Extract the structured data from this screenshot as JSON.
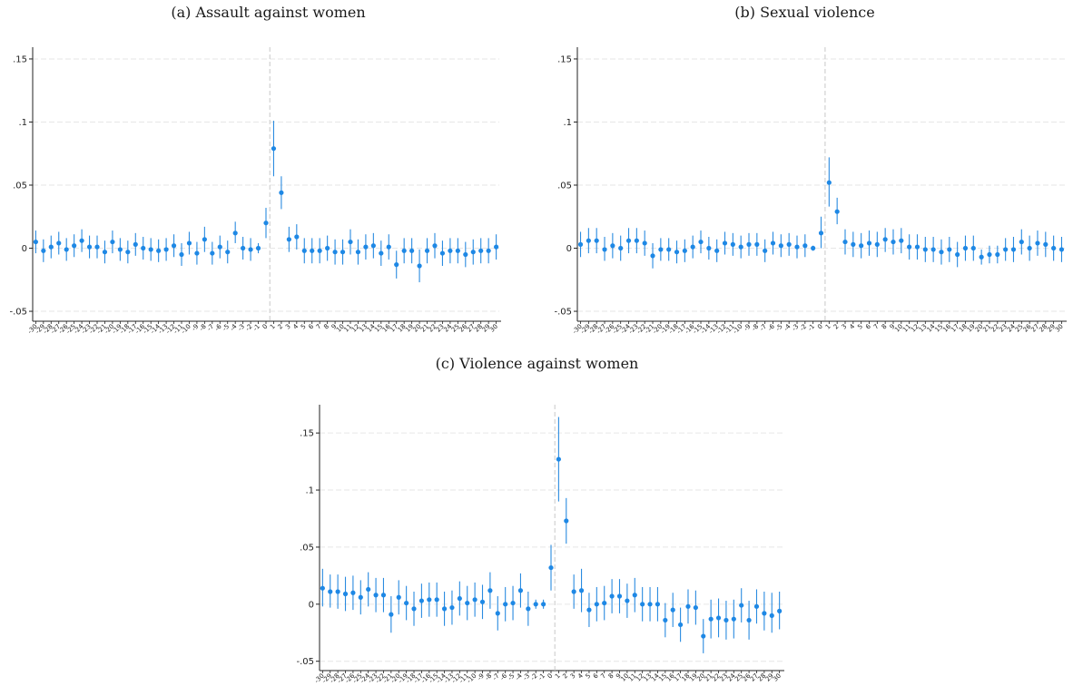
{
  "chart_data": [
    {
      "type": "scatter",
      "panel_label": "(a) Assault against women",
      "y_ticks": [
        -0.05,
        0,
        0.05,
        0.1,
        0.15
      ],
      "y_tick_labels": [
        "-.05",
        "0",
        ".05",
        ".1",
        ".15"
      ],
      "ylim": [
        -0.055,
        0.155
      ],
      "grid": true,
      "event_line_at": 0.5,
      "x": [
        -30,
        -29,
        -28,
        -27,
        -26,
        -25,
        -24,
        -23,
        -22,
        -21,
        -20,
        -19,
        -18,
        -17,
        -16,
        -15,
        -14,
        -13,
        -12,
        -11,
        -10,
        -9,
        -8,
        -7,
        -6,
        -5,
        -4,
        -3,
        -2,
        -1,
        0,
        1,
        2,
        3,
        4,
        5,
        6,
        7,
        8,
        9,
        10,
        11,
        12,
        13,
        14,
        15,
        16,
        17,
        18,
        19,
        20,
        21,
        22,
        23,
        24,
        25,
        26,
        27,
        28,
        29,
        30
      ],
      "series": [
        {
          "estimate": [
            0.005,
            -0.002,
            0.001,
            0.004,
            -0.001,
            0.002,
            0.006,
            0.001,
            0.001,
            -0.003,
            0.005,
            -0.001,
            -0.003,
            0.003,
            0.0,
            -0.001,
            -0.002,
            -0.001,
            0.002,
            -0.005,
            0.004,
            -0.004,
            0.007,
            -0.004,
            0.001,
            -0.003,
            0.012,
            0.0,
            -0.001,
            0.0,
            0.02,
            0.079,
            0.044,
            0.007,
            0.009,
            -0.002,
            -0.002,
            -0.002,
            0.0,
            -0.003,
            -0.003,
            0.005,
            -0.003,
            0.001,
            0.002,
            -0.004,
            0.001,
            -0.013,
            -0.002,
            -0.002,
            -0.014,
            -0.002,
            0.002,
            -0.004,
            -0.002,
            -0.002,
            -0.005,
            -0.003,
            -0.002,
            -0.002,
            0.001
          ],
          "ci_low": [
            -0.004,
            -0.011,
            -0.008,
            -0.005,
            -0.01,
            -0.007,
            -0.003,
            -0.008,
            -0.008,
            -0.012,
            -0.004,
            -0.01,
            -0.012,
            -0.006,
            -0.009,
            -0.01,
            -0.011,
            -0.01,
            -0.007,
            -0.014,
            -0.005,
            -0.013,
            -0.003,
            -0.013,
            -0.008,
            -0.012,
            0.004,
            -0.009,
            -0.01,
            -0.004,
            0.008,
            0.057,
            0.031,
            -0.003,
            -0.001,
            -0.012,
            -0.012,
            -0.012,
            -0.01,
            -0.013,
            -0.013,
            -0.005,
            -0.013,
            -0.009,
            -0.008,
            -0.014,
            -0.009,
            -0.024,
            -0.012,
            -0.012,
            -0.027,
            -0.012,
            -0.008,
            -0.014,
            -0.012,
            -0.012,
            -0.015,
            -0.013,
            -0.012,
            -0.012,
            -0.009
          ],
          "ci_high": [
            0.014,
            0.007,
            0.01,
            0.013,
            0.008,
            0.011,
            0.015,
            0.01,
            0.01,
            0.006,
            0.014,
            0.008,
            0.006,
            0.012,
            0.009,
            0.008,
            0.007,
            0.008,
            0.011,
            0.004,
            0.013,
            0.005,
            0.017,
            0.005,
            0.01,
            0.006,
            0.021,
            0.009,
            0.008,
            0.004,
            0.032,
            0.101,
            0.057,
            0.017,
            0.019,
            0.008,
            0.008,
            0.008,
            0.01,
            0.007,
            0.007,
            0.015,
            0.007,
            0.011,
            0.012,
            0.006,
            0.011,
            -0.002,
            0.008,
            0.008,
            -0.001,
            0.008,
            0.012,
            0.006,
            0.008,
            0.008,
            0.005,
            0.007,
            0.008,
            0.008,
            0.011
          ]
        }
      ]
    },
    {
      "type": "scatter",
      "panel_label": "(b) Sexual violence",
      "y_ticks": [
        -0.05,
        0,
        0.05,
        0.1,
        0.15
      ],
      "y_tick_labels": [
        "-.05",
        "0",
        ".05",
        ".1",
        ".15"
      ],
      "ylim": [
        -0.055,
        0.155
      ],
      "grid": true,
      "event_line_at": 0.5,
      "x": [
        -30,
        -29,
        -28,
        -27,
        -26,
        -25,
        -24,
        -23,
        -22,
        -21,
        -20,
        -19,
        -18,
        -17,
        -16,
        -15,
        -14,
        -13,
        -12,
        -11,
        -10,
        -9,
        -8,
        -7,
        -6,
        -5,
        -4,
        -3,
        -2,
        -1,
        0,
        1,
        2,
        3,
        4,
        5,
        6,
        7,
        8,
        9,
        10,
        11,
        12,
        13,
        14,
        15,
        16,
        17,
        18,
        19,
        20,
        21,
        22,
        23,
        24,
        25,
        26,
        27,
        28,
        29,
        30
      ],
      "series": [
        {
          "estimate": [
            0.003,
            0.006,
            0.006,
            -0.001,
            0.002,
            0.0,
            0.006,
            0.006,
            0.004,
            -0.006,
            -0.001,
            -0.001,
            -0.003,
            -0.002,
            0.001,
            0.005,
            0.0,
            -0.002,
            0.004,
            0.003,
            0.001,
            0.003,
            0.003,
            -0.002,
            0.004,
            0.002,
            0.003,
            0.001,
            0.002,
            0.0,
            0.012,
            0.052,
            0.029,
            0.005,
            0.003,
            0.002,
            0.004,
            0.003,
            0.007,
            0.005,
            0.006,
            0.001,
            0.001,
            -0.001,
            -0.001,
            -0.003,
            -0.001,
            -0.005,
            0.0,
            0.0,
            -0.007,
            -0.005,
            -0.005,
            -0.001,
            -0.001,
            0.005,
            0.0,
            0.004,
            0.003,
            0.0,
            -0.001
          ],
          "ci_low": [
            -0.007,
            -0.004,
            -0.004,
            -0.01,
            -0.008,
            -0.01,
            -0.004,
            -0.004,
            -0.006,
            -0.016,
            -0.01,
            -0.01,
            -0.012,
            -0.011,
            -0.008,
            -0.004,
            -0.009,
            -0.011,
            -0.005,
            -0.006,
            -0.008,
            -0.006,
            -0.006,
            -0.011,
            -0.005,
            -0.007,
            -0.006,
            -0.008,
            -0.007,
            -0.002,
            0.0,
            0.033,
            0.019,
            -0.005,
            -0.007,
            -0.008,
            -0.006,
            -0.007,
            -0.003,
            -0.005,
            -0.004,
            -0.009,
            -0.009,
            -0.011,
            -0.011,
            -0.013,
            -0.011,
            -0.015,
            -0.01,
            -0.01,
            -0.013,
            -0.012,
            -0.012,
            -0.01,
            -0.011,
            -0.005,
            -0.01,
            -0.006,
            -0.007,
            -0.01,
            -0.011
          ],
          "ci_high": [
            0.013,
            0.016,
            0.016,
            0.009,
            0.012,
            0.01,
            0.016,
            0.016,
            0.014,
            0.004,
            0.008,
            0.008,
            0.006,
            0.007,
            0.01,
            0.014,
            0.009,
            0.007,
            0.013,
            0.012,
            0.01,
            0.012,
            0.012,
            0.007,
            0.013,
            0.011,
            0.012,
            0.01,
            0.011,
            0.002,
            0.025,
            0.072,
            0.04,
            0.015,
            0.013,
            0.012,
            0.014,
            0.013,
            0.016,
            0.015,
            0.016,
            0.011,
            0.011,
            0.009,
            0.009,
            0.007,
            0.009,
            0.005,
            0.01,
            0.01,
            -0.001,
            0.002,
            0.002,
            0.008,
            0.009,
            0.015,
            0.01,
            0.014,
            0.013,
            0.01,
            0.009
          ]
        }
      ]
    },
    {
      "type": "scatter",
      "panel_label": "(c) Violence against women",
      "y_ticks": [
        -0.05,
        0,
        0.05,
        0.1,
        0.15
      ],
      "y_tick_labels": [
        "-.05",
        "0",
        ".05",
        ".1",
        ".15"
      ],
      "ylim": [
        -0.055,
        0.17
      ],
      "grid": true,
      "event_line_at": 0.5,
      "x": [
        -30,
        -29,
        -28,
        -27,
        -26,
        -25,
        -24,
        -23,
        -22,
        -21,
        -20,
        -19,
        -18,
        -17,
        -16,
        -15,
        -14,
        -13,
        -12,
        -11,
        -10,
        -9,
        -8,
        -7,
        -6,
        -5,
        -4,
        -3,
        -2,
        -1,
        0,
        1,
        2,
        3,
        4,
        5,
        6,
        7,
        8,
        9,
        10,
        11,
        12,
        13,
        14,
        15,
        16,
        17,
        18,
        19,
        20,
        21,
        22,
        23,
        24,
        25,
        26,
        27,
        28,
        29,
        30
      ],
      "series": [
        {
          "estimate": [
            0.014,
            0.011,
            0.011,
            0.009,
            0.01,
            0.006,
            0.013,
            0.008,
            0.008,
            -0.009,
            0.006,
            0.001,
            -0.004,
            0.003,
            0.004,
            0.004,
            -0.004,
            -0.003,
            0.005,
            0.001,
            0.004,
            0.002,
            0.012,
            -0.008,
            0.0,
            0.001,
            0.012,
            -0.004,
            0.0,
            0.0,
            0.032,
            0.127,
            0.073,
            0.011,
            0.012,
            -0.005,
            0.0,
            0.001,
            0.007,
            0.007,
            0.003,
            0.008,
            0.0,
            0.0,
            0.0,
            -0.014,
            -0.005,
            -0.018,
            -0.002,
            -0.003,
            -0.028,
            -0.013,
            -0.012,
            -0.014,
            -0.013,
            -0.001,
            -0.014,
            -0.002,
            -0.008,
            -0.01,
            -0.006
          ],
          "ci_low": [
            -0.002,
            -0.003,
            -0.004,
            -0.006,
            -0.005,
            -0.009,
            -0.002,
            -0.007,
            -0.007,
            -0.025,
            -0.009,
            -0.014,
            -0.019,
            -0.012,
            -0.011,
            -0.011,
            -0.019,
            -0.018,
            -0.01,
            -0.014,
            -0.011,
            -0.013,
            -0.004,
            -0.023,
            -0.015,
            -0.014,
            -0.003,
            -0.019,
            -0.004,
            -0.004,
            0.012,
            0.09,
            0.053,
            -0.004,
            -0.007,
            -0.02,
            -0.015,
            -0.014,
            -0.008,
            -0.008,
            -0.012,
            -0.007,
            -0.015,
            -0.015,
            -0.015,
            -0.029,
            -0.02,
            -0.033,
            -0.017,
            -0.018,
            -0.043,
            -0.03,
            -0.029,
            -0.031,
            -0.03,
            -0.016,
            -0.031,
            -0.017,
            -0.023,
            -0.025,
            -0.022
          ],
          "ci_high": [
            0.031,
            0.026,
            0.026,
            0.024,
            0.025,
            0.021,
            0.028,
            0.023,
            0.023,
            0.007,
            0.021,
            0.016,
            0.011,
            0.018,
            0.019,
            0.019,
            0.011,
            0.012,
            0.02,
            0.016,
            0.019,
            0.017,
            0.028,
            0.007,
            0.015,
            0.016,
            0.027,
            0.011,
            0.004,
            0.004,
            0.052,
            0.164,
            0.093,
            0.026,
            0.031,
            0.01,
            0.015,
            0.016,
            0.022,
            0.022,
            0.018,
            0.023,
            0.015,
            0.015,
            0.015,
            0.001,
            0.01,
            -0.003,
            0.013,
            0.012,
            -0.013,
            0.004,
            0.005,
            0.003,
            0.004,
            0.014,
            0.003,
            0.013,
            0.011,
            0.01,
            0.011
          ]
        }
      ]
    }
  ],
  "colors": {
    "marker": "#1e88e5",
    "ci": "#2a8be0",
    "grid": "#e6e6e6",
    "event_line": "#c8c8c8",
    "axis": "#222222"
  }
}
